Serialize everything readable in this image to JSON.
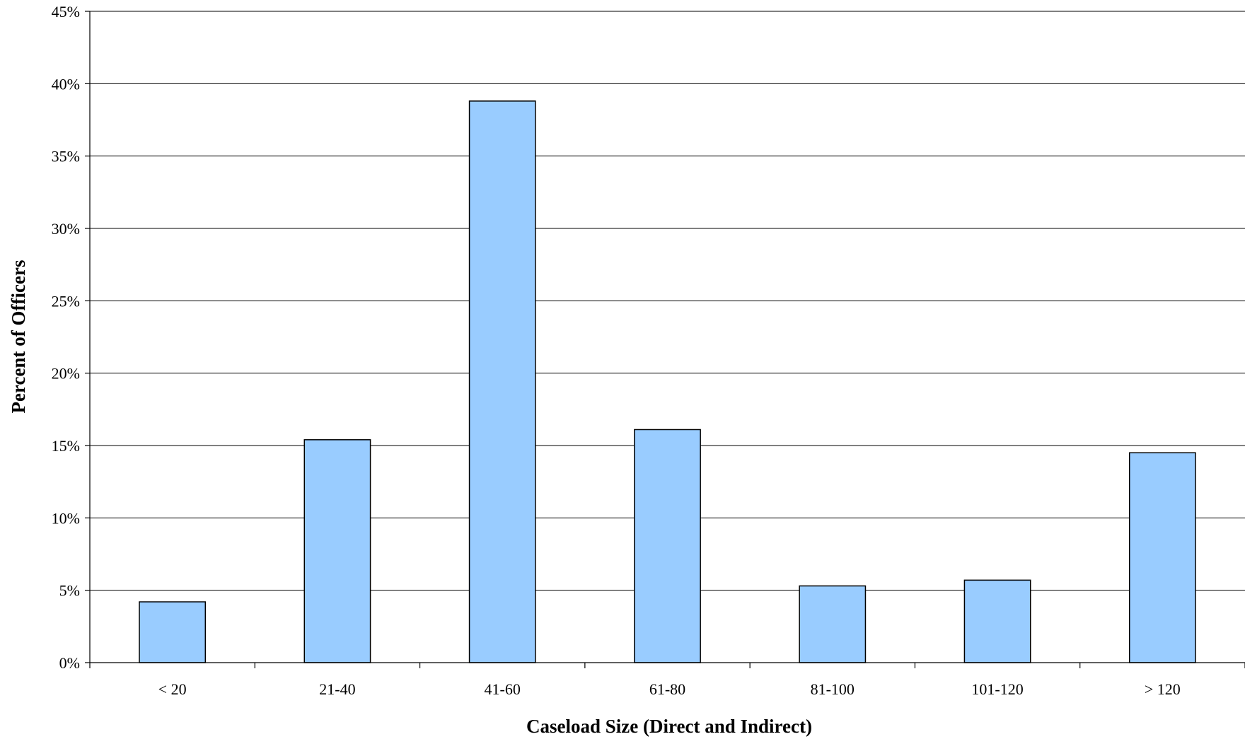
{
  "chart_data": {
    "type": "bar",
    "categories": [
      "< 20",
      "21-40",
      "41-60",
      "61-80",
      "81-100",
      "101-120",
      "> 120"
    ],
    "values": [
      4.2,
      15.4,
      38.8,
      16.1,
      5.3,
      5.7,
      14.5
    ],
    "title": "",
    "xlabel": "Caseload Size (Direct and Indirect)",
    "ylabel": "Percent of Officers",
    "ylim": [
      0,
      45
    ],
    "yticks": [
      "0%",
      "5%",
      "10%",
      "15%",
      "20%",
      "25%",
      "30%",
      "35%",
      "40%",
      "45%"
    ],
    "grid": true,
    "legend": "none",
    "colors": {
      "bar_fill": "#99CCFF",
      "bar_stroke": "#000000",
      "grid": "#000000"
    }
  }
}
